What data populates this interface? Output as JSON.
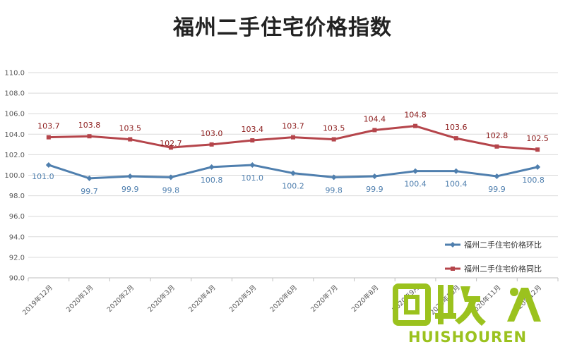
{
  "chart_data": {
    "type": "line",
    "title": "福州二手住宅价格指数",
    "categories": [
      "2019年12月",
      "2020年1月",
      "2020年2月",
      "2020年3月",
      "2020年4月",
      "2020年5月",
      "2020年6月",
      "2020年7月",
      "2020年8月",
      "2020年9月",
      "2020年10月",
      "2020年11月",
      "2020年12月"
    ],
    "series": [
      {
        "name": "福州二手住宅价格环比",
        "color": "#4f7fae",
        "marker": "diamond",
        "values": [
          101.0,
          99.7,
          99.9,
          99.8,
          100.8,
          101.0,
          100.2,
          99.8,
          99.9,
          100.4,
          100.4,
          99.9,
          100.8
        ]
      },
      {
        "name": "福州二手住宅价格同比",
        "color": "#b5454b",
        "marker": "square",
        "values": [
          103.7,
          103.8,
          103.5,
          102.7,
          103.0,
          103.4,
          103.7,
          103.5,
          104.4,
          104.8,
          103.6,
          102.8,
          102.5
        ]
      }
    ],
    "ylim": [
      90.0,
      110.0
    ],
    "yticks": [
      "90.0",
      "92.0",
      "94.0",
      "96.0",
      "98.0",
      "100.0",
      "102.0",
      "104.0",
      "106.0",
      "108.0",
      "110.0"
    ],
    "grid": true,
    "legend_position": "bottom-right"
  },
  "watermark": {
    "text": "HUISHOUREN",
    "brand": "回收",
    "color": "#9bc21e"
  }
}
